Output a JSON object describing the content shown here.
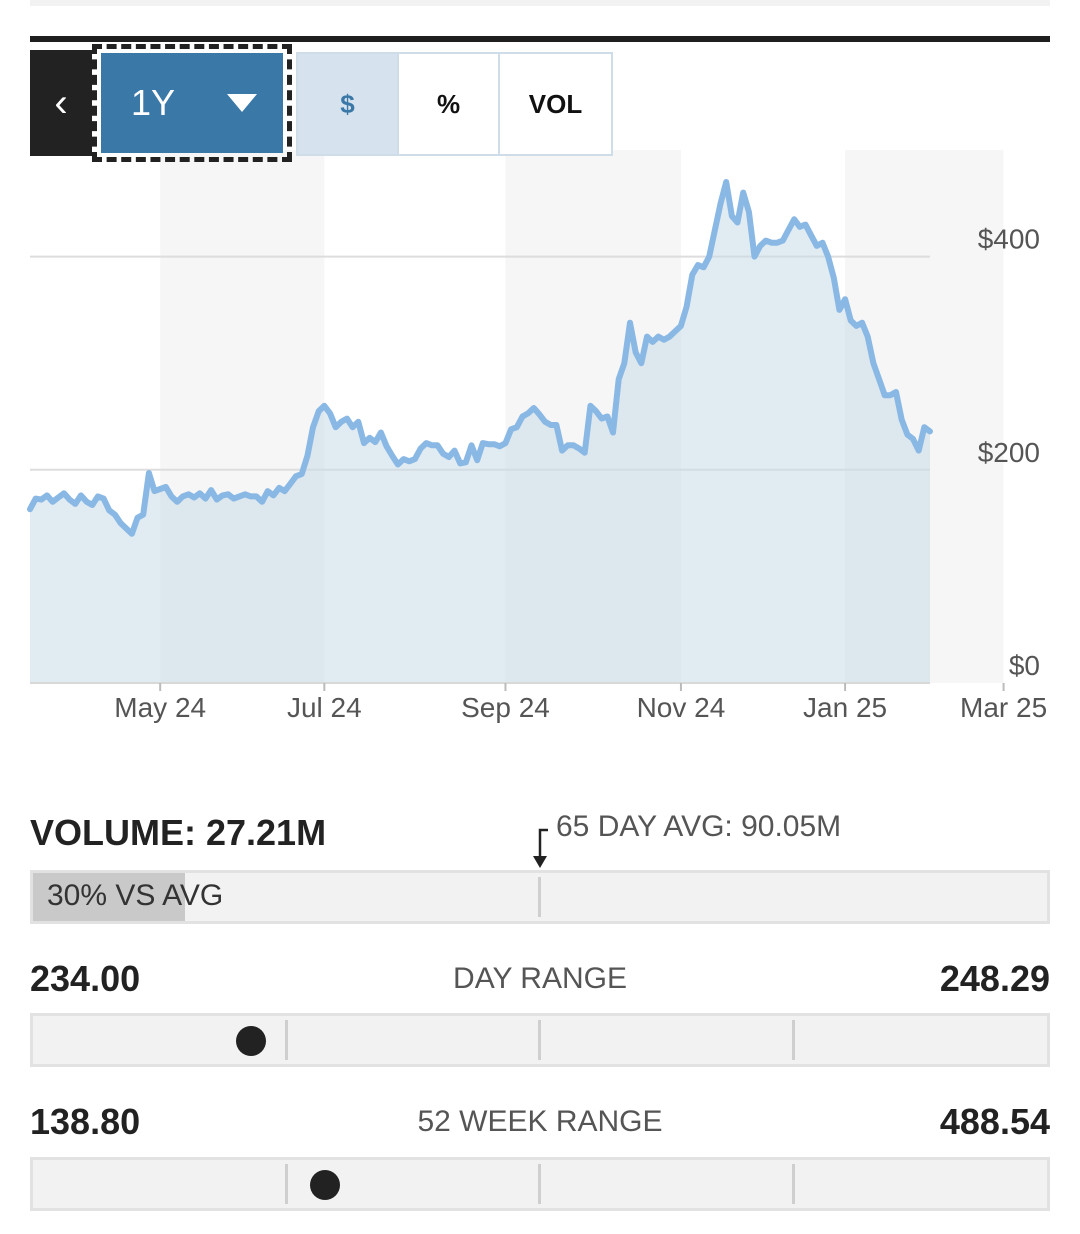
{
  "controls": {
    "back_icon": "chevron-left-icon",
    "range_selected": "1Y",
    "tabs": [
      {
        "label": "$",
        "active": true
      },
      {
        "label": "%",
        "active": false
      },
      {
        "label": "VOL",
        "active": false
      }
    ]
  },
  "chart_data": {
    "type": "area",
    "ylim": [
      0,
      500
    ],
    "y_ticks": [
      {
        "value": 0,
        "label": "$0"
      },
      {
        "value": 200,
        "label": "$200"
      },
      {
        "value": 400,
        "label": "$400"
      }
    ],
    "x_ticks": [
      {
        "index": 23,
        "label": "May 24"
      },
      {
        "index": 52,
        "label": "Jul 24"
      },
      {
        "index": 84,
        "label": "Sep 24"
      },
      {
        "index": 115,
        "label": "Nov 24"
      },
      {
        "index": 144,
        "label": "Jan 25"
      },
      {
        "index": 172,
        "label": "Mar 25"
      }
    ],
    "shaded_bands": [
      [
        23,
        52
      ],
      [
        84,
        115
      ],
      [
        144,
        172
      ]
    ],
    "values": [
      163,
      173,
      172,
      176,
      170,
      174,
      178,
      172,
      168,
      176,
      170,
      167,
      175,
      173,
      162,
      158,
      150,
      145,
      140,
      155,
      158,
      197,
      180,
      182,
      184,
      175,
      170,
      175,
      177,
      174,
      178,
      173,
      181,
      172,
      176,
      177,
      173,
      175,
      177,
      175,
      175,
      170,
      180,
      176,
      183,
      180,
      187,
      194,
      196,
      213,
      240,
      255,
      260,
      253,
      240,
      245,
      248,
      240,
      245,
      225,
      230,
      226,
      235,
      222,
      213,
      205,
      210,
      208,
      210,
      220,
      225,
      223,
      223,
      215,
      212,
      218,
      206,
      207,
      223,
      209,
      225,
      224,
      224,
      222,
      225,
      238,
      240,
      250,
      253,
      258,
      252,
      245,
      242,
      242,
      218,
      223,
      223,
      220,
      216,
      260,
      255,
      248,
      250,
      235,
      285,
      300,
      338,
      310,
      300,
      325,
      320,
      325,
      322,
      325,
      330,
      335,
      353,
      383,
      392,
      390,
      400,
      425,
      450,
      470,
      438,
      432,
      460,
      442,
      400,
      410,
      415,
      413,
      413,
      415,
      425,
      435,
      428,
      430,
      420,
      410,
      413,
      400,
      380,
      350,
      360,
      340,
      335,
      338,
      325,
      300,
      285,
      270,
      270,
      273,
      247,
      233,
      229,
      218,
      240,
      236
    ]
  },
  "volume": {
    "title": "VOLUME: 27.21M",
    "avg_label": "65 DAY AVG: 90.05M",
    "vs_avg_label": "30% VS AVG",
    "fraction_of_avg": 0.3
  },
  "day_range": {
    "low": "234.00",
    "label": "DAY RANGE",
    "high": "248.29",
    "position_fraction": 0.215
  },
  "week52_range": {
    "low": "138.80",
    "label": "52 WEEK RANGE",
    "high": "488.54",
    "position_fraction": 0.288
  }
}
